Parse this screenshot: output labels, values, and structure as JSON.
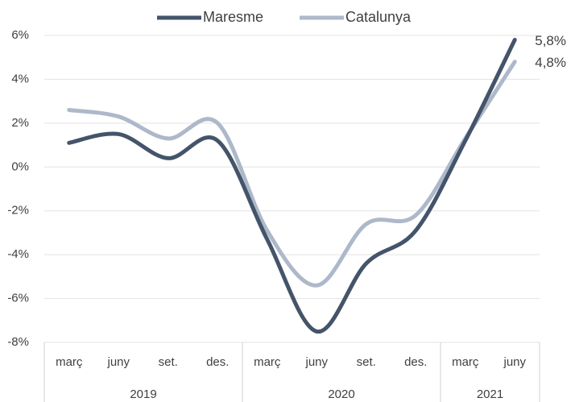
{
  "chart_data": {
    "type": "line",
    "categories": [
      "març",
      "juny",
      "set.",
      "des.",
      "març",
      "juny",
      "set.",
      "des.",
      "març",
      "juny"
    ],
    "category_groups": [
      {
        "label": "2019",
        "size": 4
      },
      {
        "label": "2020",
        "size": 4
      },
      {
        "label": "2021",
        "size": 2
      }
    ],
    "series": [
      {
        "name": "Maresme",
        "color": "#44546a",
        "values": [
          1.1,
          1.5,
          0.4,
          1.2,
          -3.3,
          -7.5,
          -4.4,
          -2.9,
          1.2,
          5.8
        ],
        "value_labels": [
          null,
          null,
          null,
          null,
          null,
          null,
          null,
          null,
          null,
          "5,8%"
        ]
      },
      {
        "name": "Catalunya",
        "color": "#adb9ca",
        "values": [
          2.6,
          2.3,
          1.3,
          2.0,
          -2.9,
          -5.4,
          -2.6,
          -2.2,
          1.3,
          4.8
        ],
        "value_labels": [
          null,
          null,
          null,
          null,
          null,
          null,
          null,
          null,
          null,
          "4,8%"
        ]
      }
    ],
    "ylim": [
      -8,
      6
    ],
    "yticks": [
      {
        "value": -8,
        "label": "-8%"
      },
      {
        "value": -6,
        "label": "-6%"
      },
      {
        "value": -4,
        "label": "-4%"
      },
      {
        "value": -2,
        "label": "-2%"
      },
      {
        "value": 0,
        "label": "0%"
      },
      {
        "value": 2,
        "label": "2%"
      },
      {
        "value": 4,
        "label": "4%"
      },
      {
        "value": 6,
        "label": "6%"
      }
    ],
    "grid": true,
    "smooth": true,
    "legend": "top"
  }
}
